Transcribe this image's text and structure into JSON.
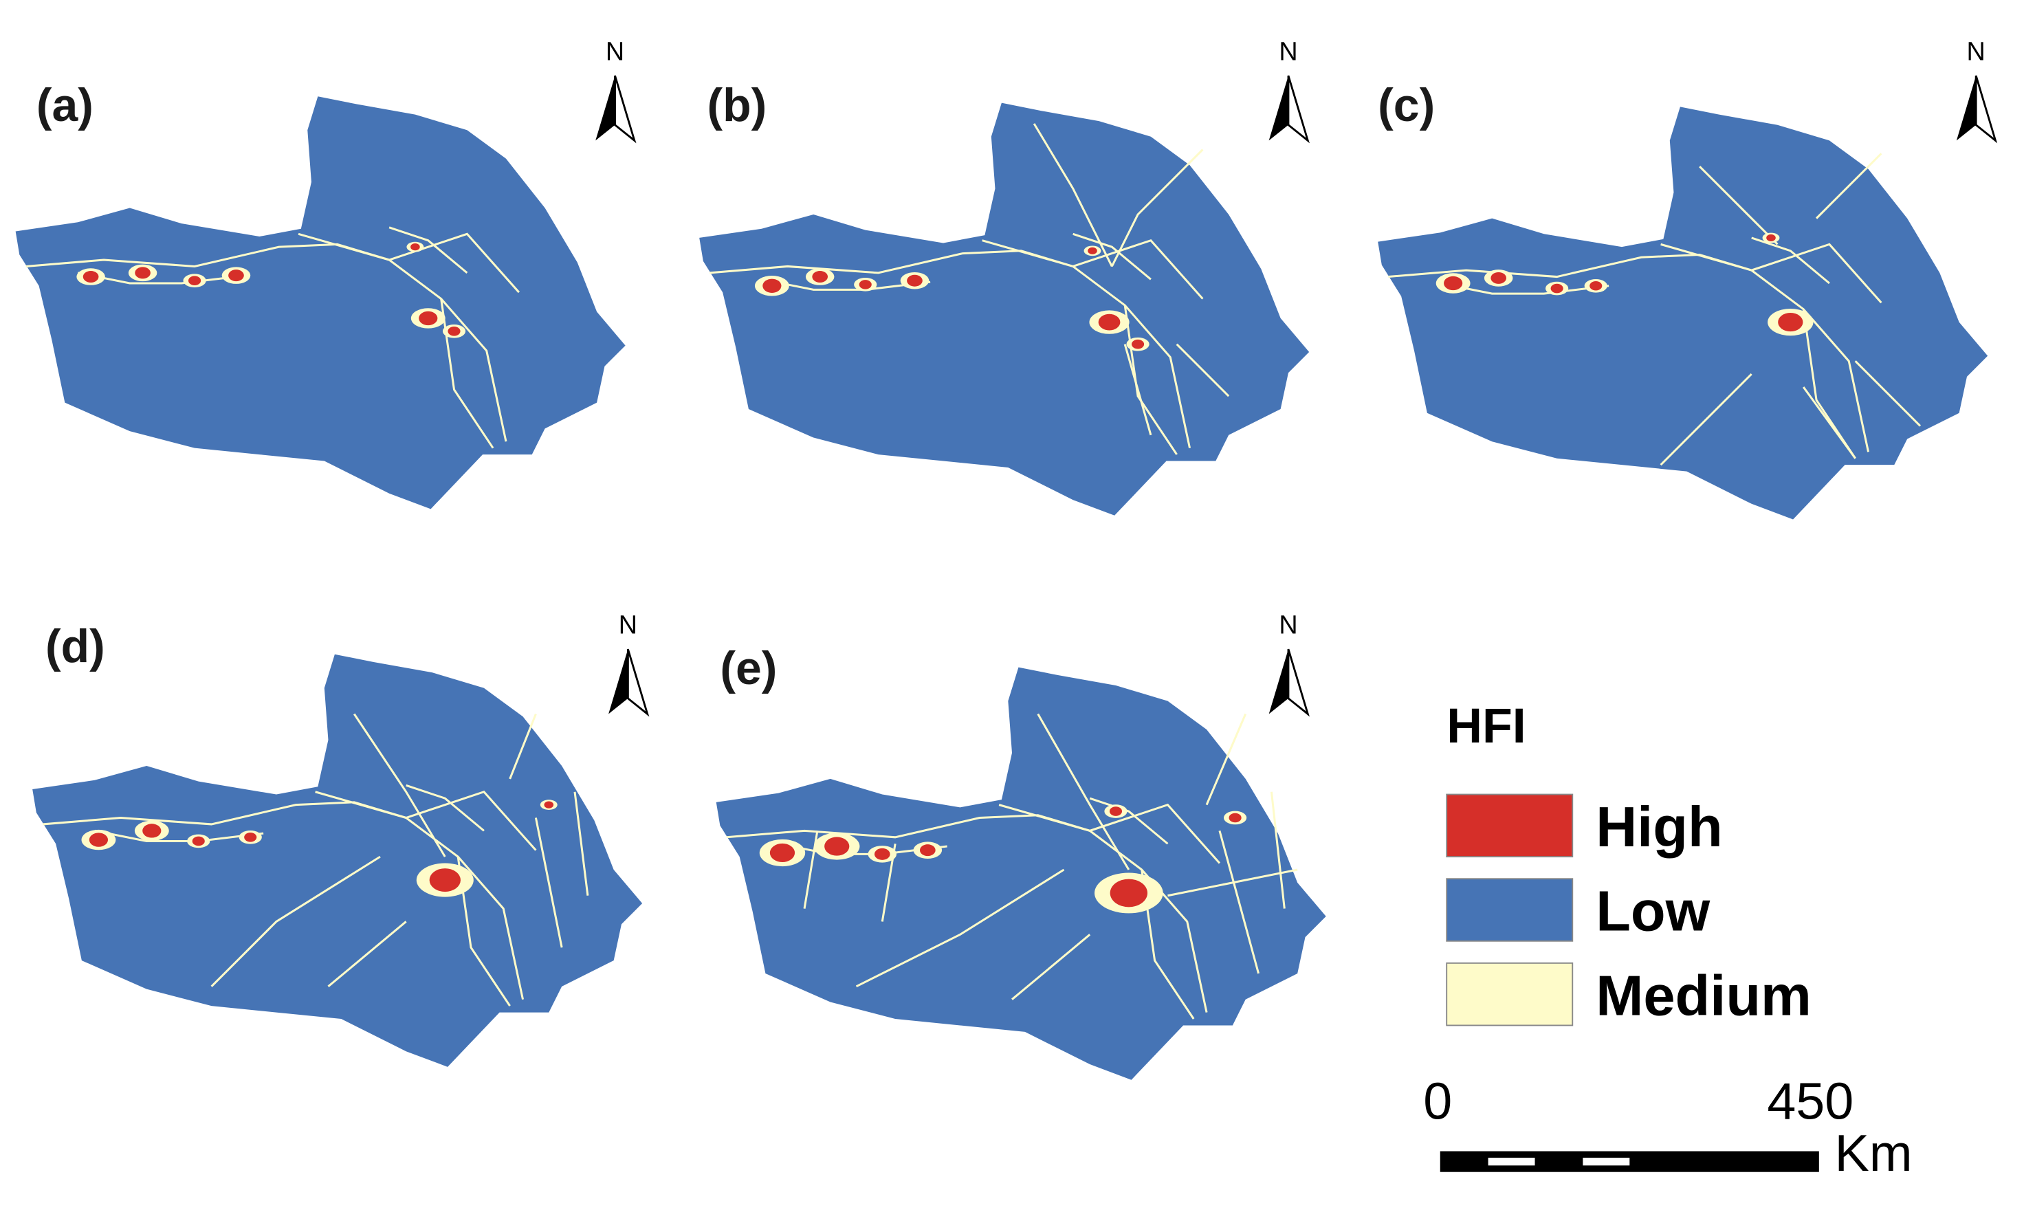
{
  "panels": [
    {
      "label": "(a)",
      "north": "N"
    },
    {
      "label": "(b)",
      "north": "N"
    },
    {
      "label": "(c)",
      "north": "N"
    },
    {
      "label": "(d)",
      "north": "N"
    },
    {
      "label": "(e)",
      "north": "N"
    }
  ],
  "legend": {
    "title": "HFI",
    "items": [
      {
        "label": "High",
        "color": "#d62f29"
      },
      {
        "label": "Low",
        "color": "#4674b5"
      },
      {
        "label": "Medium",
        "color": "#fefbc9"
      }
    ]
  },
  "scale_bar": {
    "start": "0",
    "end": "450",
    "unit": "Km"
  }
}
